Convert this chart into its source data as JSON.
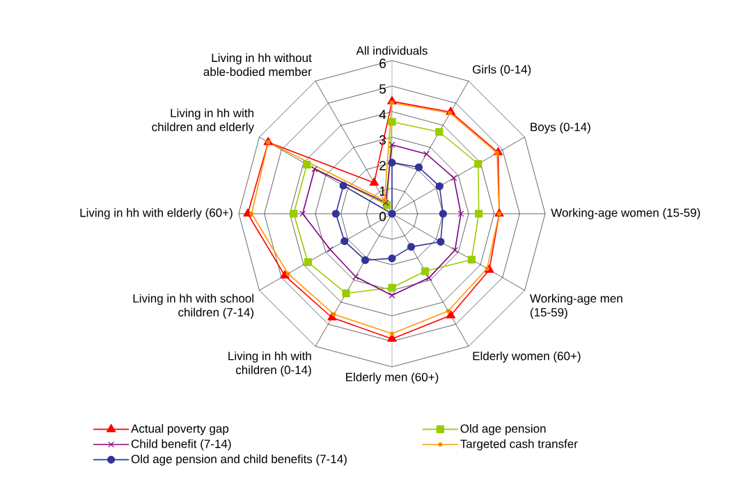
{
  "chart_data": {
    "type": "radar",
    "categories": [
      "All individuals",
      "Girls (0-14)",
      "Boys (0-14)",
      "Working-age women (15-59)",
      "Working-age men (15-59)",
      "Elderly women (60+)",
      "Elderly men (60+)",
      "Living in hh with children (0-14)",
      "Living in hh with school children (7-14)",
      "Living in hh with elderly (60+)",
      "Living in hh with children and elderly",
      "Living in hh without able-bodied member"
    ],
    "series": [
      {
        "name": "Actual poverty gap",
        "color": "#ff0000",
        "marker": "triangle",
        "values": [
          4.4,
          4.6,
          4.8,
          4.2,
          4.4,
          4.6,
          4.9,
          4.7,
          4.85,
          5.65,
          5.6,
          1.4
        ]
      },
      {
        "name": "Old age pension",
        "color": "#99cc00",
        "marker": "square",
        "values": [
          3.6,
          3.7,
          3.9,
          3.4,
          3.6,
          2.6,
          2.9,
          3.6,
          3.8,
          3.85,
          3.85,
          0.4
        ]
      },
      {
        "name": "Child benefit (7-14)",
        "color": "#800080",
        "marker": "cross",
        "values": [
          2.7,
          2.7,
          2.8,
          2.7,
          2.85,
          2.9,
          3.2,
          2.85,
          2.8,
          3.5,
          3.5,
          0.5
        ]
      },
      {
        "name": "Targeted cash transfer",
        "color": "#ff9900",
        "marker": "circle",
        "values": [
          4.35,
          4.55,
          4.75,
          4.2,
          4.3,
          4.4,
          4.7,
          4.55,
          4.7,
          5.5,
          5.6,
          0.6
        ]
      },
      {
        "name": "Old age pension and child benefits (7-14)",
        "color": "#333399",
        "marker": "circle",
        "values": [
          2.0,
          2.1,
          2.15,
          2.0,
          2.2,
          1.5,
          1.75,
          2.1,
          2.15,
          2.2,
          2.2,
          0
        ]
      }
    ],
    "ylim": [
      0,
      6
    ],
    "yticks": [
      0,
      1,
      2,
      3,
      4,
      5,
      6
    ],
    "grid": true,
    "legend": "bottom"
  }
}
